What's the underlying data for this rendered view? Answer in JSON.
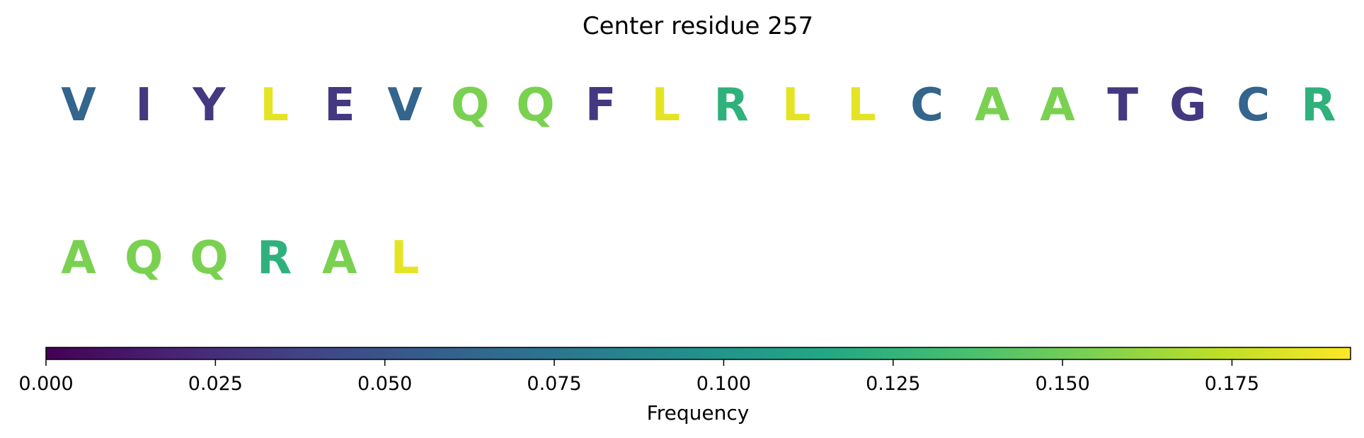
{
  "chart_data": {
    "type": "heatmap",
    "title": "Center residue 257",
    "rows": [
      [
        {
          "letter": "V",
          "frequency": 0.062
        },
        {
          "letter": "I",
          "frequency": 0.031
        },
        {
          "letter": "Y",
          "frequency": 0.031
        },
        {
          "letter": "L",
          "frequency": 0.185
        },
        {
          "letter": "E",
          "frequency": 0.031
        },
        {
          "letter": "V",
          "frequency": 0.062
        },
        {
          "letter": "Q",
          "frequency": 0.154
        },
        {
          "letter": "Q",
          "frequency": 0.154
        },
        {
          "letter": "F",
          "frequency": 0.031
        },
        {
          "letter": "L",
          "frequency": 0.185
        },
        {
          "letter": "R",
          "frequency": 0.123
        },
        {
          "letter": "L",
          "frequency": 0.185
        },
        {
          "letter": "L",
          "frequency": 0.185
        },
        {
          "letter": "C",
          "frequency": 0.062
        },
        {
          "letter": "A",
          "frequency": 0.154
        },
        {
          "letter": "A",
          "frequency": 0.154
        },
        {
          "letter": "T",
          "frequency": 0.031
        },
        {
          "letter": "G",
          "frequency": 0.031
        },
        {
          "letter": "C",
          "frequency": 0.062
        },
        {
          "letter": "R",
          "frequency": 0.123
        }
      ],
      [
        {
          "letter": "A",
          "frequency": 0.154
        },
        {
          "letter": "Q",
          "frequency": 0.154
        },
        {
          "letter": "Q",
          "frequency": 0.154
        },
        {
          "letter": "R",
          "frequency": 0.123
        },
        {
          "letter": "A",
          "frequency": 0.154
        },
        {
          "letter": "L",
          "frequency": 0.185
        }
      ]
    ],
    "colorbar": {
      "label": "Frequency",
      "colormap": "viridis",
      "range": [
        0.0,
        0.1925
      ],
      "ticks": [
        0.0,
        0.025,
        0.05,
        0.075,
        0.1,
        0.125,
        0.15,
        0.175
      ],
      "tick_labels": [
        "0.000",
        "0.025",
        "0.050",
        "0.075",
        "0.100",
        "0.125",
        "0.150",
        "0.175"
      ],
      "orientation": "horizontal",
      "placement": "bottom"
    }
  }
}
